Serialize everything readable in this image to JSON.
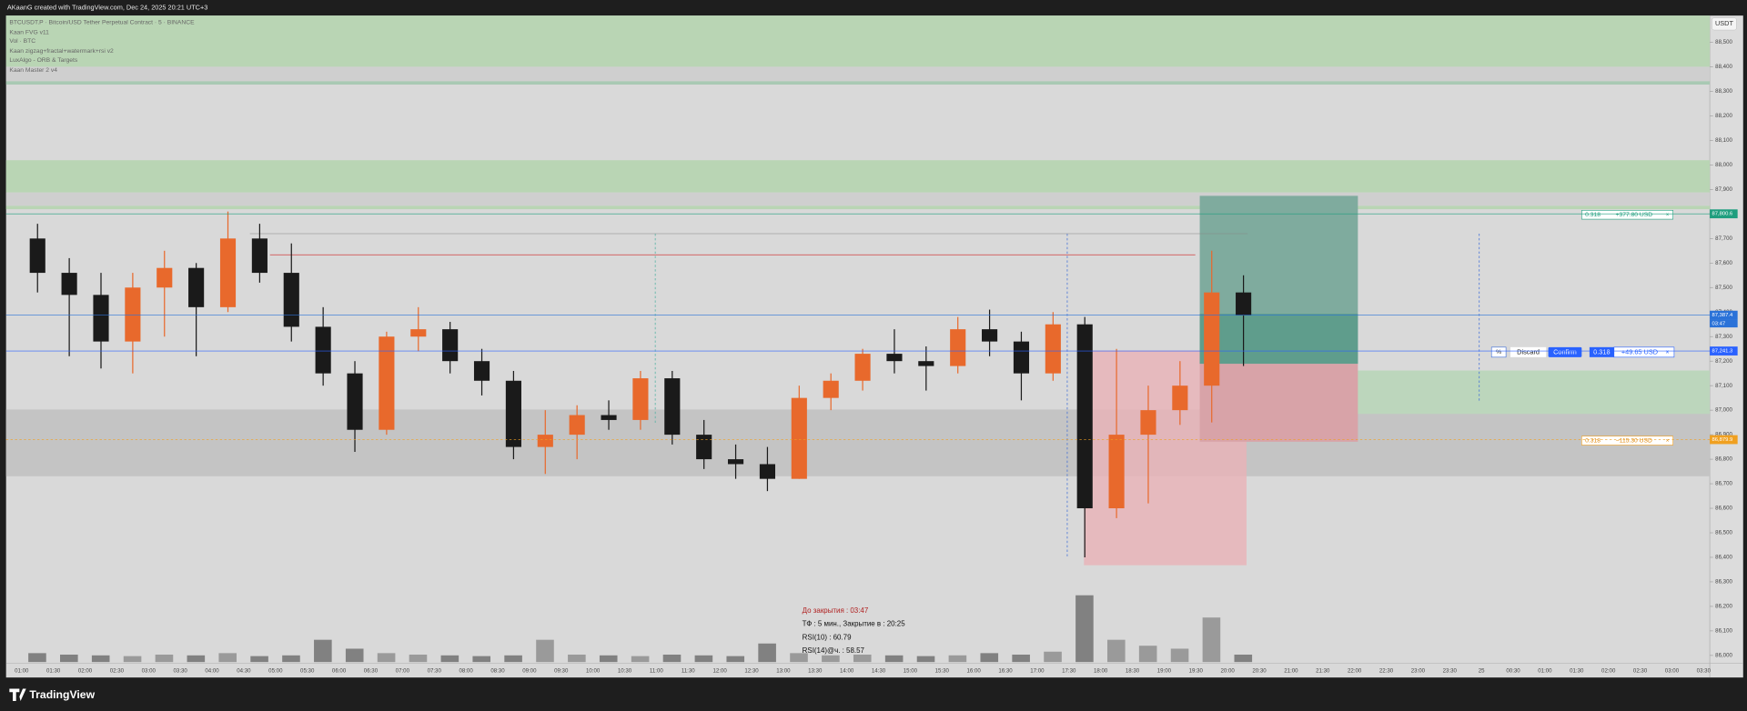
{
  "header": {
    "title": "AKaanG created with TradingView.com, Dec 24, 2025 20:21 UTC+3"
  },
  "legend": [
    "BTCUSDT.P · Bitcoin/USD Tether Perpetual Contract · 5 · BINANCE",
    "Kaan FVG v11",
    "Vol · BTC",
    "Kaan zigzag+fractal+watermark+rsi v2",
    "LuxAlgo - ORB & Targets",
    "Kaan Master 2 v4"
  ],
  "chart_data": {
    "type": "candlestick",
    "currency": "USDT",
    "categories": [
      "01:00",
      "01:30",
      "02:00",
      "02:30",
      "03:00",
      "03:30",
      "04:00",
      "04:30",
      "05:00",
      "05:30",
      "06:00",
      "06:30",
      "07:00",
      "07:30",
      "08:00",
      "08:30",
      "09:00",
      "09:30",
      "10:00",
      "10:30",
      "11:00",
      "11:30",
      "12:00",
      "12:30",
      "13:00",
      "13:30",
      "14:00",
      "14:30",
      "15:00",
      "15:30",
      "16:00",
      "16:30",
      "17:00",
      "17:30",
      "18:00",
      "18:30",
      "19:00",
      "19:30",
      "20:00",
      "20:30",
      "21:00",
      "21:30",
      "22:00",
      "22:30",
      "23:00",
      "23:30",
      "25",
      "00:30",
      "01:00",
      "01:30",
      "02:00",
      "02:30",
      "03:00",
      "03:30"
    ],
    "open": [
      87700,
      87560,
      87470,
      87280,
      87500,
      87580,
      87420,
      87700,
      87560,
      87340,
      87150,
      86920,
      87300,
      87330,
      87200,
      87120,
      86850,
      86900,
      86980,
      86960,
      87130,
      86900,
      86800,
      86780,
      86720,
      87050,
      87120,
      87230,
      87200,
      87180,
      87330,
      87280,
      87150,
      87350,
      86600,
      86900,
      87000,
      87100,
      87480,
      null,
      null,
      null,
      null,
      null,
      null,
      null,
      null,
      null,
      null,
      null,
      null,
      null,
      null,
      null
    ],
    "high": [
      87760,
      87620,
      87560,
      87560,
      87650,
      87600,
      87810,
      87760,
      87680,
      87420,
      87200,
      87320,
      87420,
      87360,
      87250,
      87160,
      87000,
      87020,
      87040,
      87160,
      87160,
      86960,
      86860,
      86850,
      87100,
      87150,
      87250,
      87330,
      87260,
      87380,
      87410,
      87320,
      87400,
      87380,
      87250,
      87100,
      87200,
      87650,
      87550,
      null,
      null,
      null,
      null,
      null,
      null,
      null,
      null,
      null,
      null,
      null,
      null,
      null,
      null,
      null
    ],
    "low": [
      87480,
      87220,
      87170,
      87150,
      87300,
      87220,
      87400,
      87520,
      87280,
      87100,
      86830,
      86900,
      87240,
      87150,
      87060,
      86800,
      86740,
      86800,
      86920,
      86920,
      86860,
      86760,
      86720,
      86670,
      86720,
      87000,
      87080,
      87150,
      87080,
      87150,
      87220,
      87040,
      87120,
      86400,
      86560,
      86620,
      86940,
      86950,
      87180,
      null,
      null,
      null,
      null,
      null,
      null,
      null,
      null,
      null,
      null,
      null,
      null,
      null,
      null,
      null
    ],
    "close": [
      87560,
      87470,
      87280,
      87500,
      87580,
      87420,
      87700,
      87560,
      87340,
      87150,
      86920,
      87300,
      87330,
      87200,
      87120,
      86850,
      86900,
      86980,
      86960,
      87130,
      86900,
      86800,
      86780,
      86720,
      87050,
      87120,
      87230,
      87200,
      87180,
      87330,
      87280,
      87150,
      87350,
      86600,
      86900,
      87000,
      87100,
      87480,
      87387,
      null,
      null,
      null,
      null,
      null,
      null,
      null,
      null,
      null,
      null,
      null,
      null,
      null,
      null,
      null
    ],
    "volume": [
      12,
      10,
      9,
      8,
      10,
      9,
      12,
      8,
      9,
      30,
      18,
      12,
      10,
      9,
      8,
      9,
      30,
      10,
      9,
      8,
      10,
      9,
      8,
      25,
      12,
      9,
      10,
      9,
      8,
      9,
      12,
      10,
      14,
      90,
      30,
      22,
      18,
      60,
      10,
      null,
      null,
      null,
      null,
      null,
      null,
      null,
      null,
      null,
      null,
      null,
      null,
      null,
      null,
      null
    ],
    "up_color": "#e8692c",
    "down_color": "#1a1a1a",
    "ylim": [
      85973,
      88609
    ],
    "yticks": [
      {
        "value": 86000,
        "label": "86,000"
      },
      {
        "value": 86100,
        "label": "86,100"
      },
      {
        "value": 86200,
        "label": "86,200"
      },
      {
        "value": 86300,
        "label": "86,300"
      },
      {
        "value": 86400,
        "label": "86,400"
      },
      {
        "value": 86500,
        "label": "86,500"
      },
      {
        "value": 86600,
        "label": "86,600"
      },
      {
        "value": 86700,
        "label": "86,700"
      },
      {
        "value": 86800,
        "label": "86,800"
      },
      {
        "value": 86900,
        "label": "86,900"
      },
      {
        "value": 87000,
        "label": "87,000"
      },
      {
        "value": 87100,
        "label": "87,100"
      },
      {
        "value": 87200,
        "label": "87,200"
      },
      {
        "value": 87300,
        "label": "87,300"
      },
      {
        "value": 87400,
        "label": "87,400"
      },
      {
        "value": 87500,
        "label": "87,500"
      },
      {
        "value": 87600,
        "label": "87,600"
      },
      {
        "value": 87700,
        "label": "87,700"
      },
      {
        "value": 87800,
        "label": "87,800"
      },
      {
        "value": 87900,
        "label": "87,900"
      },
      {
        "value": 88000,
        "label": "88,000"
      },
      {
        "value": 88100,
        "label": "88,100"
      },
      {
        "value": 88200,
        "label": "88,200"
      },
      {
        "value": 88300,
        "label": "88,300"
      },
      {
        "value": 88400,
        "label": "88,400"
      },
      {
        "value": 88500,
        "label": "88,500"
      }
    ],
    "price_tags": [
      {
        "value": 87800.6,
        "label": "87,800.6",
        "color": "#1e9e7e"
      },
      {
        "value": 87387.4,
        "label": "87,387.4",
        "color": "#2a72d8"
      },
      {
        "value": 87241.3,
        "label": "87,241.3",
        "color": "#2a62ff"
      },
      {
        "value": 86879.9,
        "label": "86,879.9",
        "color": "#f0a020"
      }
    ],
    "countdown": "03:47"
  },
  "order": {
    "percent": "%",
    "discard": "Discard",
    "confirm": "Confirm",
    "qty": "0.318",
    "pnl": "+49.65 USD",
    "close": "×"
  },
  "positions": [
    {
      "qty": "0.318",
      "pnl": "+377.80 USD",
      "close": "×"
    },
    {
      "qty": "0.318",
      "pnl": "−115.30 USD",
      "close": "×"
    }
  ],
  "info": [
    "До закрытия : 03:47",
    "ТФ : 5 мин., Закрытие в : 20:25",
    "RSI(10) : 60.79",
    "RSI(14)@ч. : 58.57"
  ],
  "footer": {
    "brand": "TradingView"
  }
}
